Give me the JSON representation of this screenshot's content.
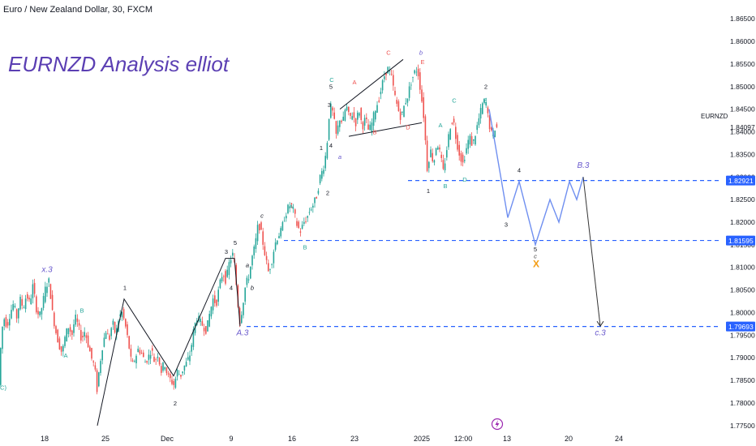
{
  "header": {
    "symbol_line": "Euro / New Zealand Dollar, 30, FXCM"
  },
  "title": "EURNZD Analysis elliot",
  "ticker_label": "EURNZD",
  "icons": {
    "replay": "lightning-icon"
  },
  "colors": {
    "up": "#26a69a",
    "down": "#ef5350",
    "level": "#2962ff",
    "projection": "#6f8ff0",
    "wave": "#131722",
    "title": "#5b3fb3",
    "x_mark": "#f39c12",
    "label_purple": "#6a5acd"
  },
  "chart_data": {
    "type": "candlestick",
    "y_range": [
      1.773,
      1.867
    ],
    "y_ticks": [
      "1.86500",
      "1.86000",
      "1.85500",
      "1.85000",
      "1.84500",
      "1.84000",
      "1.83500",
      "1.83000",
      "1.82500",
      "1.82000",
      "1.81500",
      "1.81000",
      "1.80500",
      "1.80000",
      "1.79500",
      "1.79000",
      "1.78500",
      "1.78000",
      "1.77500"
    ],
    "x_ticks": [
      "18",
      "25",
      "Dec",
      "9",
      "16",
      "23",
      "2025",
      "12:00",
      "13",
      "20",
      "24"
    ],
    "current_price": "1.84097",
    "levels": [
      {
        "value": 1.82921,
        "label": "1.82921"
      },
      {
        "value": 1.81595,
        "label": "1.81595"
      },
      {
        "value": 1.79693,
        "label": "1.79693"
      }
    ],
    "price_path": [
      [
        0,
        1.784
      ],
      [
        3,
        1.795
      ],
      [
        6,
        1.799
      ],
      [
        10,
        1.797
      ],
      [
        14,
        1.8
      ],
      [
        18,
        1.802
      ],
      [
        22,
        1.799
      ],
      [
        26,
        1.803
      ],
      [
        30,
        1.801
      ],
      [
        34,
        1.804
      ],
      [
        38,
        1.802
      ],
      [
        42,
        1.806
      ],
      [
        46,
        1.801
      ],
      [
        50,
        1.799
      ],
      [
        54,
        1.802
      ],
      [
        58,
        1.806
      ],
      [
        62,
        1.807
      ],
      [
        66,
        1.8
      ],
      [
        70,
        1.796
      ],
      [
        74,
        1.793
      ],
      [
        78,
        1.791
      ],
      [
        82,
        1.795
      ],
      [
        86,
        1.797
      ],
      [
        90,
        1.795
      ],
      [
        94,
        1.799
      ],
      [
        98,
        1.797
      ],
      [
        102,
        1.794
      ],
      [
        106,
        1.796
      ],
      [
        110,
        1.793
      ],
      [
        114,
        1.79
      ],
      [
        118,
        1.788
      ],
      [
        121,
        1.783
      ],
      [
        124,
        1.788
      ],
      [
        128,
        1.793
      ],
      [
        132,
        1.796
      ],
      [
        136,
        1.794
      ],
      [
        140,
        1.798
      ],
      [
        144,
        1.795
      ],
      [
        148,
        1.799
      ],
      [
        152,
        1.8
      ],
      [
        156,
        1.797
      ],
      [
        160,
        1.793
      ],
      [
        164,
        1.788
      ],
      [
        168,
        1.79
      ],
      [
        172,
        1.792
      ],
      [
        176,
        1.791
      ],
      [
        180,
        1.789
      ],
      [
        184,
        1.79
      ],
      [
        188,
        1.792
      ],
      [
        192,
        1.789
      ],
      [
        196,
        1.791
      ],
      [
        200,
        1.787
      ],
      [
        204,
        1.789
      ],
      [
        208,
        1.786
      ],
      [
        212,
        1.785
      ],
      [
        216,
        1.784
      ],
      [
        220,
        1.787
      ],
      [
        224,
        1.786
      ],
      [
        228,
        1.788
      ],
      [
        232,
        1.789
      ],
      [
        236,
        1.791
      ],
      [
        240,
        1.796
      ],
      [
        244,
        1.799
      ],
      [
        248,
        1.798
      ],
      [
        252,
        1.797
      ],
      [
        256,
        1.796
      ],
      [
        260,
        1.8
      ],
      [
        264,
        1.803
      ],
      [
        268,
        1.802
      ],
      [
        272,
        1.806
      ],
      [
        276,
        1.809
      ],
      [
        280,
        1.807
      ],
      [
        284,
        1.811
      ],
      [
        288,
        1.813
      ],
      [
        291,
        1.81
      ],
      [
        294,
        1.803
      ],
      [
        297,
        1.798
      ],
      [
        300,
        1.801
      ],
      [
        304,
        1.806
      ],
      [
        308,
        1.808
      ],
      [
        312,
        1.812
      ],
      [
        316,
        1.815
      ],
      [
        320,
        1.82
      ],
      [
        324,
        1.817
      ],
      [
        328,
        1.813
      ],
      [
        332,
        1.809
      ],
      [
        336,
        1.811
      ],
      [
        340,
        1.815
      ],
      [
        344,
        1.817
      ],
      [
        348,
        1.818
      ],
      [
        352,
        1.821
      ],
      [
        356,
        1.823
      ],
      [
        360,
        1.824
      ],
      [
        364,
        1.822
      ],
      [
        368,
        1.819
      ],
      [
        372,
        1.818
      ],
      [
        376,
        1.82
      ],
      [
        380,
        1.821
      ],
      [
        384,
        1.823
      ],
      [
        388,
        1.824
      ],
      [
        392,
        1.826
      ],
      [
        396,
        1.83
      ],
      [
        400,
        1.832
      ],
      [
        404,
        1.836
      ],
      [
        408,
        1.846
      ],
      [
        412,
        1.844
      ],
      [
        416,
        1.839
      ],
      [
        420,
        1.843
      ],
      [
        424,
        1.842
      ],
      [
        428,
        1.846
      ],
      [
        432,
        1.843
      ],
      [
        436,
        1.844
      ],
      [
        440,
        1.842
      ],
      [
        444,
        1.845
      ],
      [
        448,
        1.841
      ],
      [
        452,
        1.843
      ],
      [
        456,
        1.84
      ],
      [
        460,
        1.842
      ],
      [
        464,
        1.845
      ],
      [
        468,
        1.847
      ],
      [
        472,
        1.85
      ],
      [
        476,
        1.853
      ],
      [
        480,
        1.854
      ],
      [
        484,
        1.852
      ],
      [
        488,
        1.848
      ],
      [
        492,
        1.845
      ],
      [
        496,
        1.843
      ],
      [
        500,
        1.846
      ],
      [
        504,
        1.848
      ],
      [
        508,
        1.851
      ],
      [
        512,
        1.853
      ],
      [
        516,
        1.854
      ],
      [
        520,
        1.849
      ],
      [
        524,
        1.843
      ],
      [
        528,
        1.832
      ],
      [
        532,
        1.836
      ],
      [
        536,
        1.833
      ],
      [
        540,
        1.838
      ],
      [
        544,
        1.835
      ],
      [
        548,
        1.831
      ],
      [
        552,
        1.836
      ],
      [
        556,
        1.841
      ],
      [
        560,
        1.843
      ],
      [
        564,
        1.838
      ],
      [
        568,
        1.835
      ],
      [
        572,
        1.833
      ],
      [
        576,
        1.836
      ],
      [
        580,
        1.839
      ],
      [
        584,
        1.837
      ],
      [
        588,
        1.84
      ],
      [
        592,
        1.843
      ],
      [
        596,
        1.846
      ],
      [
        600,
        1.847
      ],
      [
        604,
        1.842
      ],
      [
        608,
        1.839
      ],
      [
        612,
        1.841
      ]
    ],
    "projection_path": [
      [
        603,
        1.845
      ],
      [
        626,
        1.821
      ],
      [
        640,
        1.829
      ],
      [
        660,
        1.815
      ],
      [
        678,
        1.825
      ],
      [
        689,
        1.82
      ],
      [
        702,
        1.829
      ],
      [
        711,
        1.825
      ],
      [
        719,
        1.83
      ],
      [
        740,
        1.797
      ]
    ],
    "projection_labels": [
      {
        "text": "4",
        "x": 640,
        "y": 1.831
      },
      {
        "text": "3",
        "x": 624,
        "y": 1.819
      },
      {
        "text": "B.3",
        "x": 719,
        "y": 1.832
      },
      {
        "text": "5",
        "x": 660,
        "y": 1.8135
      },
      {
        "text": "c",
        "x": 660,
        "y": 1.812
      },
      {
        "text": "X",
        "x": 661,
        "y": 1.81
      },
      {
        "text": "c.3",
        "x": 740,
        "y": 1.795
      }
    ],
    "wave_lines": [
      [
        [
          120,
          1.775
        ],
        [
          153,
          1.803
        ],
        [
          214,
          1.786
        ],
        [
          278,
          1.812
        ],
        [
          289,
          1.812
        ],
        [
          296,
          1.797
        ]
      ],
      [
        [
          419,
          1.845
        ],
        [
          497,
          1.856
        ]
      ],
      [
        [
          430,
          1.839
        ],
        [
          520,
          1.842
        ]
      ]
    ],
    "wave_labels": [
      {
        "text": "x.3",
        "x": 58,
        "y": 1.809,
        "kind": "purple"
      },
      {
        "text": "1",
        "x": 154,
        "y": 1.805,
        "kind": "black"
      },
      {
        "text": "B",
        "x": 101,
        "y": 1.8,
        "kind": "teal"
      },
      {
        "text": "A",
        "x": 81,
        "y": 1.79,
        "kind": "teal"
      },
      {
        "text": "C)",
        "x": 4,
        "y": 1.783,
        "kind": "teal"
      },
      {
        "text": "2",
        "x": 216,
        "y": 1.7795,
        "kind": "black"
      },
      {
        "text": "3",
        "x": 279,
        "y": 1.813,
        "kind": "black"
      },
      {
        "text": "5",
        "x": 290,
        "y": 1.815,
        "kind": "black"
      },
      {
        "text": "a",
        "x": 305,
        "y": 1.81,
        "kind": "black-italic"
      },
      {
        "text": "4",
        "x": 285,
        "y": 1.805,
        "kind": "black"
      },
      {
        "text": "b",
        "x": 311,
        "y": 1.805,
        "kind": "black-italic"
      },
      {
        "text": "c",
        "x": 323,
        "y": 1.821,
        "kind": "black-italic"
      },
      {
        "text": "A.3",
        "x": 299,
        "y": 1.795,
        "kind": "purple"
      },
      {
        "text": "A",
        "x": 359,
        "y": 1.823,
        "kind": "teal"
      },
      {
        "text": "B",
        "x": 376,
        "y": 1.814,
        "kind": "teal"
      },
      {
        "text": "1",
        "x": 396,
        "y": 1.836,
        "kind": "black"
      },
      {
        "text": "2",
        "x": 404,
        "y": 1.826,
        "kind": "black"
      },
      {
        "text": "3",
        "x": 406,
        "y": 1.8455,
        "kind": "black"
      },
      {
        "text": "4",
        "x": 408,
        "y": 1.8365,
        "kind": "black"
      },
      {
        "text": "5",
        "x": 408,
        "y": 1.8495,
        "kind": "black"
      },
      {
        "text": "C",
        "x": 409,
        "y": 1.851,
        "kind": "teal"
      },
      {
        "text": "a",
        "x": 419,
        "y": 1.834,
        "kind": "purple-italic"
      },
      {
        "text": "A",
        "x": 437,
        "y": 1.8505,
        "kind": "red"
      },
      {
        "text": "B",
        "x": 462,
        "y": 1.8395,
        "kind": "red"
      },
      {
        "text": "C",
        "x": 479,
        "y": 1.857,
        "kind": "red"
      },
      {
        "text": "D",
        "x": 503,
        "y": 1.8405,
        "kind": "red"
      },
      {
        "text": "E",
        "x": 521,
        "y": 1.855,
        "kind": "red"
      },
      {
        "text": "b",
        "x": 519,
        "y": 1.857,
        "kind": "purple-italic"
      },
      {
        "text": "1",
        "x": 528,
        "y": 1.8265,
        "kind": "black"
      },
      {
        "text": "A",
        "x": 543,
        "y": 1.841,
        "kind": "teal"
      },
      {
        "text": "B",
        "x": 549,
        "y": 1.8275,
        "kind": "teal"
      },
      {
        "text": "C",
        "x": 560,
        "y": 1.8465,
        "kind": "teal"
      },
      {
        "text": "D",
        "x": 573,
        "y": 1.829,
        "kind": "teal"
      },
      {
        "text": "E",
        "x": 598,
        "y": 1.8465,
        "kind": "teal"
      },
      {
        "text": "2",
        "x": 599,
        "y": 1.8495,
        "kind": "black"
      }
    ]
  }
}
